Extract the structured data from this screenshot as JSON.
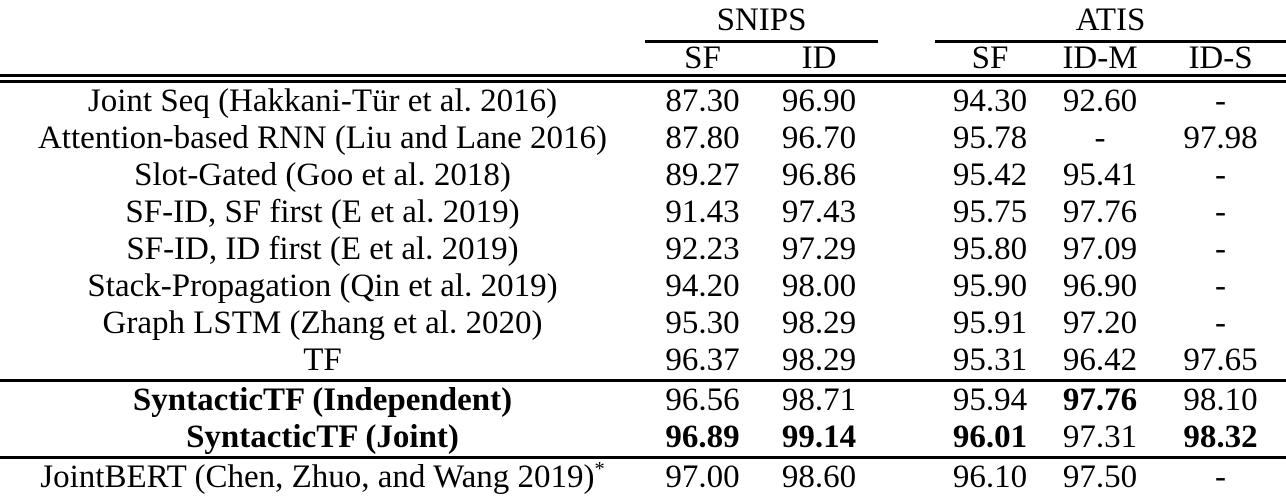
{
  "colors": {
    "text": "#000000",
    "background": "#ffffff",
    "rule": "#000000"
  },
  "table": {
    "col_groups": [
      {
        "label": "SNIPS",
        "span": 2
      },
      {
        "label": "ATIS",
        "span": 3
      }
    ],
    "sub_headers": [
      "SF",
      "ID",
      "SF",
      "ID-M",
      "ID-S"
    ],
    "sections": [
      {
        "rows": [
          {
            "model": "Joint Seq (Hakkani-Tür et al. 2016)",
            "model_bold": false,
            "sup": "",
            "values": [
              "87.30",
              "96.90",
              "94.30",
              "92.60",
              "-"
            ],
            "bold": [
              false,
              false,
              false,
              false,
              false
            ]
          },
          {
            "model": "Attention-based RNN (Liu and Lane 2016)",
            "model_bold": false,
            "sup": "",
            "values": [
              "87.80",
              "96.70",
              "95.78",
              "-",
              "97.98"
            ],
            "bold": [
              false,
              false,
              false,
              false,
              false
            ]
          },
          {
            "model": "Slot-Gated (Goo et al. 2018)",
            "model_bold": false,
            "sup": "",
            "values": [
              "89.27",
              "96.86",
              "95.42",
              "95.41",
              "-"
            ],
            "bold": [
              false,
              false,
              false,
              false,
              false
            ]
          },
          {
            "model": "SF-ID, SF first (E et al. 2019)",
            "model_bold": false,
            "sup": "",
            "values": [
              "91.43",
              "97.43",
              "95.75",
              "97.76",
              "-"
            ],
            "bold": [
              false,
              false,
              false,
              false,
              false
            ]
          },
          {
            "model": "SF-ID, ID first (E et al. 2019)",
            "model_bold": false,
            "sup": "",
            "values": [
              "92.23",
              "97.29",
              "95.80",
              "97.09",
              "-"
            ],
            "bold": [
              false,
              false,
              false,
              false,
              false
            ]
          },
          {
            "model": "Stack-Propagation (Qin et al. 2019)",
            "model_bold": false,
            "sup": "",
            "values": [
              "94.20",
              "98.00",
              "95.90",
              "96.90",
              "-"
            ],
            "bold": [
              false,
              false,
              false,
              false,
              false
            ]
          },
          {
            "model": "Graph LSTM (Zhang et al. 2020)",
            "model_bold": false,
            "sup": "",
            "values": [
              "95.30",
              "98.29",
              "95.91",
              "97.20",
              "-"
            ],
            "bold": [
              false,
              false,
              false,
              false,
              false
            ]
          },
          {
            "model": "TF",
            "model_bold": false,
            "sup": "",
            "values": [
              "96.37",
              "98.29",
              "95.31",
              "96.42",
              "97.65"
            ],
            "bold": [
              false,
              false,
              false,
              false,
              false
            ]
          }
        ]
      },
      {
        "rows": [
          {
            "model": "SyntacticTF (Independent)",
            "model_bold": true,
            "sup": "",
            "values": [
              "96.56",
              "98.71",
              "95.94",
              "97.76",
              "98.10"
            ],
            "bold": [
              false,
              false,
              false,
              true,
              false
            ]
          },
          {
            "model": "SyntacticTF (Joint)",
            "model_bold": true,
            "sup": "",
            "values": [
              "96.89",
              "99.14",
              "96.01",
              "97.31",
              "98.32"
            ],
            "bold": [
              true,
              true,
              true,
              false,
              true
            ]
          }
        ]
      },
      {
        "rows": [
          {
            "model": "JointBERT (Chen, Zhuo, and Wang 2019)",
            "model_bold": false,
            "sup": "*",
            "values": [
              "97.00",
              "98.60",
              "96.10",
              "97.50",
              "-"
            ],
            "bold": [
              false,
              false,
              false,
              false,
              false
            ]
          }
        ]
      }
    ]
  }
}
